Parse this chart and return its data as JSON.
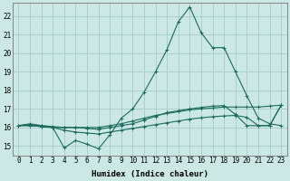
{
  "background_color": "#cce8e4",
  "grid_color": "#aacfcc",
  "line_color": "#1a6b5a",
  "xlabel": "Humidex (Indice chaleur)",
  "x_ticks": [
    0,
    1,
    2,
    3,
    4,
    5,
    6,
    7,
    8,
    9,
    10,
    11,
    12,
    13,
    14,
    15,
    16,
    17,
    18,
    19,
    20,
    21,
    22,
    23
  ],
  "ylim": [
    14.5,
    22.7
  ],
  "yticks": [
    15,
    16,
    17,
    18,
    19,
    20,
    21,
    22
  ],
  "series": [
    {
      "x": [
        0,
        1,
        2,
        3,
        4,
        5,
        6,
        7,
        8,
        9,
        10,
        11,
        12,
        13,
        14,
        15,
        16,
        17,
        18,
        19,
        20,
        21,
        22,
        23
      ],
      "y": [
        16.1,
        16.2,
        16.1,
        16.0,
        14.9,
        15.3,
        15.1,
        14.85,
        15.6,
        16.5,
        17.0,
        17.9,
        19.0,
        20.2,
        21.7,
        22.5,
        21.1,
        20.3,
        20.3,
        19.0,
        17.7,
        16.5,
        16.2,
        16.1
      ]
    },
    {
      "x": [
        0,
        1,
        2,
        3,
        4,
        5,
        6,
        7,
        8,
        9,
        10,
        11,
        12,
        13,
        14,
        15,
        16,
        17,
        18,
        19,
        20,
        21,
        22,
        23
      ],
      "y": [
        16.1,
        16.15,
        16.1,
        16.05,
        16.0,
        16.0,
        16.0,
        16.0,
        16.1,
        16.2,
        16.35,
        16.5,
        16.65,
        16.75,
        16.85,
        16.95,
        17.0,
        17.05,
        17.1,
        17.1,
        17.1,
        17.1,
        17.15,
        17.2
      ]
    },
    {
      "x": [
        0,
        1,
        2,
        3,
        4,
        5,
        6,
        7,
        8,
        9,
        10,
        11,
        12,
        13,
        14,
        15,
        16,
        17,
        18,
        19,
        20,
        21,
        22,
        23
      ],
      "y": [
        16.1,
        16.1,
        16.05,
        16.0,
        15.85,
        15.75,
        15.7,
        15.65,
        15.75,
        15.85,
        15.95,
        16.05,
        16.15,
        16.25,
        16.35,
        16.45,
        16.52,
        16.58,
        16.62,
        16.65,
        16.55,
        16.1,
        16.1,
        17.2
      ]
    },
    {
      "x": [
        0,
        1,
        2,
        3,
        4,
        5,
        6,
        7,
        8,
        9,
        10,
        11,
        12,
        13,
        14,
        15,
        16,
        17,
        18,
        19,
        20,
        21,
        22,
        23
      ],
      "y": [
        16.1,
        16.1,
        16.05,
        16.0,
        16.0,
        16.0,
        15.95,
        15.9,
        16.0,
        16.1,
        16.2,
        16.4,
        16.6,
        16.8,
        16.9,
        17.0,
        17.08,
        17.15,
        17.18,
        16.7,
        16.1,
        16.1,
        16.1,
        17.2
      ]
    }
  ],
  "tick_fontsize": 5.5,
  "axis_fontsize": 6.5
}
